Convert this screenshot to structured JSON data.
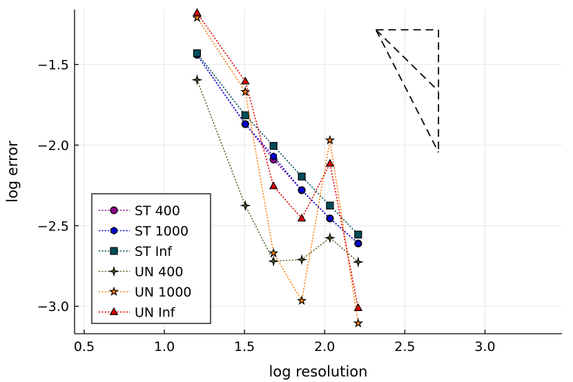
{
  "chart_data": {
    "type": "line",
    "title": "",
    "xlabel": "log resolution",
    "ylabel": "log error",
    "xlim": [
      0.44,
      3.48
    ],
    "ylim": [
      -3.17,
      -1.16
    ],
    "xticks": [
      0.5,
      1.0,
      1.5,
      2.0,
      2.5,
      3.0
    ],
    "xtick_labels": [
      "0.5",
      "1.0",
      "1.5",
      "2.0",
      "2.5",
      "3.0"
    ],
    "yticks": [
      -1.5,
      -2.0,
      -2.5,
      -3.0
    ],
    "ytick_labels": [
      "−1.5",
      "−2.0",
      "−2.5",
      "−3.0"
    ],
    "grid": true,
    "legend_position": "bottom-left",
    "series": [
      {
        "name": "ST 400",
        "color": "#8b008b",
        "marker": "circle",
        "x": [
          1.204,
          1.505,
          1.681,
          1.857,
          2.033,
          2.209
        ],
        "y": [
          -1.44,
          -1.87,
          -2.09,
          -2.28,
          -2.455,
          -2.61
        ]
      },
      {
        "name": "ST 1000",
        "color": "#0000cd",
        "marker": "hexagon",
        "x": [
          1.204,
          1.505,
          1.681,
          1.857,
          2.033,
          2.209
        ],
        "y": [
          -1.44,
          -1.87,
          -2.07,
          -2.28,
          -2.455,
          -2.61
        ]
      },
      {
        "name": "ST Inf",
        "color": "#004d5a",
        "marker": "square",
        "x": [
          1.204,
          1.505,
          1.681,
          1.857,
          2.033,
          2.209
        ],
        "y": [
          -1.43,
          -1.815,
          -2.005,
          -2.195,
          -2.375,
          -2.555
        ]
      },
      {
        "name": "UN 400",
        "color": "#556b2f",
        "marker": "cross",
        "x": [
          1.204,
          1.505,
          1.681,
          1.857,
          2.033,
          2.209
        ],
        "y": [
          -1.595,
          -2.375,
          -2.72,
          -2.71,
          -2.575,
          -2.725
        ]
      },
      {
        "name": "UN 1000",
        "color": "#ff7f0e",
        "marker": "star",
        "x": [
          1.204,
          1.505,
          1.681,
          1.857,
          2.033,
          2.209
        ],
        "y": [
          -1.21,
          -1.67,
          -2.67,
          -2.965,
          -1.97,
          -3.105
        ]
      },
      {
        "name": "UN Inf",
        "color": "#e00000",
        "marker": "triangle",
        "x": [
          1.204,
          1.505,
          1.681,
          1.857,
          2.033,
          2.209
        ],
        "y": [
          -1.18,
          -1.605,
          -2.255,
          -2.455,
          -2.115,
          -3.01
        ]
      }
    ],
    "reference_triangle": {
      "color": "#000000",
      "style": "dashed",
      "apex": [
        2.32,
        -1.285
      ],
      "corner": [
        2.71,
        -1.285
      ],
      "slope_points": [
        [
          2.71,
          -1.665
        ],
        [
          2.71,
          -2.045
        ]
      ]
    }
  }
}
